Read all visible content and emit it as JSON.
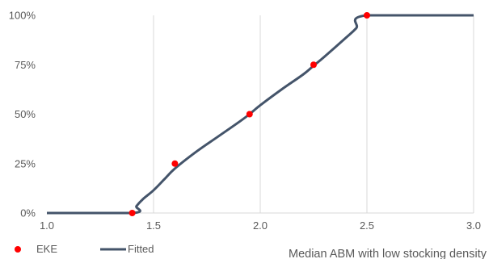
{
  "chart_data": {
    "type": "line",
    "title": "",
    "xlabel": "Median ABM with low stocking density",
    "ylabel": "",
    "xlim": [
      1.0,
      3.0
    ],
    "ylim": [
      0,
      1
    ],
    "x_ticks": [
      "1.0",
      "1.5",
      "2.0",
      "2.5",
      "3.0"
    ],
    "y_ticks": [
      "0%",
      "25%",
      "50%",
      "75%",
      "100%"
    ],
    "grid": "vertical",
    "legend_position": "bottom-left",
    "series": [
      {
        "name": "EKE",
        "kind": "scatter",
        "color": "#ff0000",
        "points": [
          [
            1.4,
            0.0
          ],
          [
            1.6,
            0.25
          ],
          [
            1.95,
            0.5
          ],
          [
            2.25,
            0.75
          ],
          [
            2.5,
            1.0
          ]
        ]
      },
      {
        "name": "Fitted",
        "kind": "line",
        "color": "#44546a",
        "points": [
          [
            1.0,
            0.0
          ],
          [
            1.4,
            0.0
          ],
          [
            1.42,
            0.035
          ],
          [
            1.45,
            0.07
          ],
          [
            1.5,
            0.115
          ],
          [
            1.55,
            0.17
          ],
          [
            1.6,
            0.225
          ],
          [
            1.7,
            0.31
          ],
          [
            1.8,
            0.385
          ],
          [
            1.9,
            0.46
          ],
          [
            1.95,
            0.5
          ],
          [
            2.0,
            0.545
          ],
          [
            2.1,
            0.625
          ],
          [
            2.2,
            0.7
          ],
          [
            2.25,
            0.745
          ],
          [
            2.3,
            0.79
          ],
          [
            2.4,
            0.885
          ],
          [
            2.45,
            0.935
          ],
          [
            2.5,
            1.0
          ],
          [
            3.0,
            1.0
          ]
        ]
      }
    ]
  }
}
